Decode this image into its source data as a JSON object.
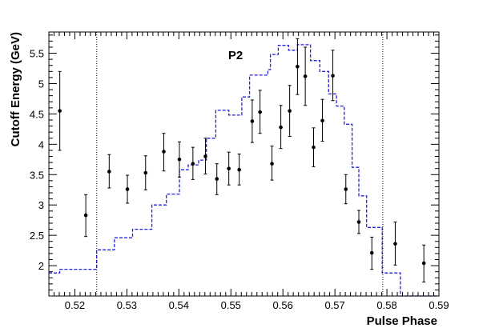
{
  "chart_data": {
    "type": "scatter",
    "title": "",
    "annotation": "P2",
    "xlabel": "Pulse Phase",
    "ylabel": "Cutoff Energy (GeV)",
    "xlim": [
      0.515,
      0.59
    ],
    "ylim": [
      1.5,
      5.85
    ],
    "x_ticks": [
      {
        "value": 0.52,
        "label": "0.52"
      },
      {
        "value": 0.53,
        "label": "0.53"
      },
      {
        "value": 0.54,
        "label": "0.54"
      },
      {
        "value": 0.55,
        "label": "0.55"
      },
      {
        "value": 0.56,
        "label": "0.56"
      },
      {
        "value": 0.57,
        "label": "0.57"
      },
      {
        "value": 0.58,
        "label": "0.58"
      },
      {
        "value": 0.59,
        "label": "0.59"
      }
    ],
    "y_ticks": [
      {
        "value": 2,
        "label": "2"
      },
      {
        "value": 2.5,
        "label": "2.5"
      },
      {
        "value": 3,
        "label": "3"
      },
      {
        "value": 3.5,
        "label": "3.5"
      },
      {
        "value": 4,
        "label": "4"
      },
      {
        "value": 4.5,
        "label": "4.5"
      },
      {
        "value": 5,
        "label": "5"
      },
      {
        "value": 5.5,
        "label": "5.5"
      }
    ],
    "vlines": [
      0.5242,
      0.5792
    ],
    "points": [
      {
        "x": 0.5171,
        "y": 4.55,
        "lo": 3.9,
        "hi": 5.2
      },
      {
        "x": 0.5221,
        "y": 2.83,
        "lo": 2.48,
        "hi": 3.17
      },
      {
        "x": 0.5266,
        "y": 3.55,
        "lo": 3.28,
        "hi": 3.83
      },
      {
        "x": 0.5301,
        "y": 3.26,
        "lo": 3.03,
        "hi": 3.49
      },
      {
        "x": 0.5336,
        "y": 3.53,
        "lo": 3.25,
        "hi": 3.81
      },
      {
        "x": 0.5371,
        "y": 3.88,
        "lo": 3.56,
        "hi": 4.18
      },
      {
        "x": 0.5401,
        "y": 3.75,
        "lo": 3.46,
        "hi": 4.04
      },
      {
        "x": 0.5427,
        "y": 3.68,
        "lo": 3.42,
        "hi": 3.95
      },
      {
        "x": 0.5451,
        "y": 3.8,
        "lo": 3.51,
        "hi": 4.1
      },
      {
        "x": 0.5473,
        "y": 3.43,
        "lo": 3.17,
        "hi": 3.68
      },
      {
        "x": 0.5496,
        "y": 3.6,
        "lo": 3.33,
        "hi": 3.87
      },
      {
        "x": 0.5516,
        "y": 3.58,
        "lo": 3.33,
        "hi": 3.84
      },
      {
        "x": 0.5541,
        "y": 4.38,
        "lo": 4.03,
        "hi": 4.73
      },
      {
        "x": 0.5556,
        "y": 4.53,
        "lo": 4.18,
        "hi": 4.89
      },
      {
        "x": 0.5579,
        "y": 3.68,
        "lo": 3.41,
        "hi": 3.97
      },
      {
        "x": 0.5596,
        "y": 4.28,
        "lo": 3.93,
        "hi": 4.64
      },
      {
        "x": 0.5613,
        "y": 4.55,
        "lo": 4.13,
        "hi": 4.97
      },
      {
        "x": 0.5628,
        "y": 5.28,
        "lo": 4.82,
        "hi": 5.74
      },
      {
        "x": 0.5643,
        "y": 5.12,
        "lo": 4.64,
        "hi": 5.6
      },
      {
        "x": 0.5659,
        "y": 3.95,
        "lo": 3.63,
        "hi": 4.27
      },
      {
        "x": 0.5676,
        "y": 4.39,
        "lo": 4.05,
        "hi": 4.74
      },
      {
        "x": 0.5696,
        "y": 5.13,
        "lo": 4.72,
        "hi": 5.55
      },
      {
        "x": 0.5721,
        "y": 3.26,
        "lo": 3.02,
        "hi": 3.5
      },
      {
        "x": 0.5746,
        "y": 2.72,
        "lo": 2.53,
        "hi": 2.91
      },
      {
        "x": 0.5771,
        "y": 2.21,
        "lo": 1.94,
        "hi": 2.47
      },
      {
        "x": 0.5816,
        "y": 2.36,
        "lo": 2.01,
        "hi": 2.72
      },
      {
        "x": 0.5871,
        "y": 2.04,
        "lo": 1.73,
        "hi": 2.34
      }
    ],
    "model_step": [
      [
        0.515,
        1.88
      ],
      [
        0.5171,
        1.94
      ],
      [
        0.5242,
        2.26
      ],
      [
        0.5276,
        2.46
      ],
      [
        0.5311,
        2.6
      ],
      [
        0.5348,
        3.0
      ],
      [
        0.5376,
        3.18
      ],
      [
        0.5401,
        3.58
      ],
      [
        0.5418,
        3.66
      ],
      [
        0.5438,
        3.74
      ],
      [
        0.5453,
        4.1
      ],
      [
        0.5471,
        4.56
      ],
      [
        0.5496,
        4.48
      ],
      [
        0.5521,
        4.78
      ],
      [
        0.5536,
        5.14
      ],
      [
        0.5571,
        5.23
      ],
      [
        0.5576,
        5.48
      ],
      [
        0.5591,
        5.63
      ],
      [
        0.5611,
        5.55
      ],
      [
        0.5628,
        5.64
      ],
      [
        0.5653,
        5.38
      ],
      [
        0.5671,
        5.2
      ],
      [
        0.5688,
        4.83
      ],
      [
        0.5703,
        4.63
      ],
      [
        0.5718,
        4.33
      ],
      [
        0.5733,
        3.62
      ],
      [
        0.5746,
        3.15
      ],
      [
        0.5761,
        2.63
      ],
      [
        0.5791,
        1.88
      ],
      [
        0.5826,
        1.5
      ]
    ],
    "colors": {
      "points": "#000000",
      "model": "#2222dd",
      "axes": "#000000"
    },
    "grid": false
  }
}
